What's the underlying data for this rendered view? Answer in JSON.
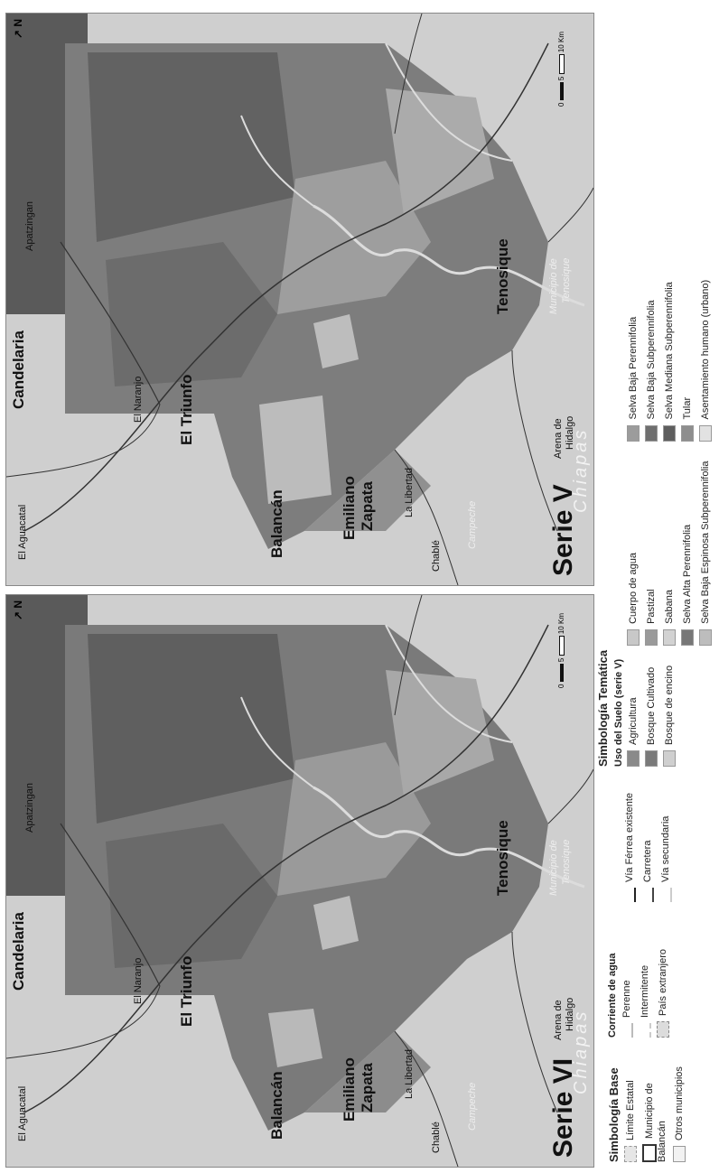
{
  "maps": [
    {
      "serie_label": "Serie VI",
      "places": {
        "candelaria": "Candelaria",
        "el_aguacatal": "El Aguacatal",
        "el_naranjo": "El Naranjo",
        "el_triunfo": "El Triunfo",
        "apatzingan": "Apatzingan",
        "balancan": "Balancán",
        "emiliano": "Emiliano",
        "zapata": "Zapata",
        "la_libertad": "La Libertad",
        "chable": "Chablé",
        "campeche": "Campeche",
        "tenosique": "Tenosique",
        "municipio_de": "Municipio de",
        "tenosique_mun": "Tenosique",
        "arena_de": "Arena de",
        "hidalgo": "Hidalgo",
        "chiapas": "Chiapas"
      }
    },
    {
      "serie_label": "Serie V",
      "places": {
        "candelaria": "Candelaria",
        "el_aguacatal": "El Aguacatal",
        "el_naranjo": "El Naranjo",
        "el_triunfo": "El Triunfo",
        "apatzingan": "Apatzingan",
        "balancan": "Balancán",
        "emiliano": "Emiliano",
        "zapata": "Zapata",
        "la_libertad": "La Libertad",
        "chable": "Chablé",
        "campeche": "Campeche",
        "tenosique": "Tenosique",
        "municipio_de": "Municipio de",
        "tenosique_mun": "Tenosique",
        "arena_de": "Arena de",
        "hidalgo": "Hidalgo",
        "chiapas": "Chiapas"
      }
    }
  ],
  "north_label": "N",
  "scale": {
    "ticks": [
      "0",
      "5",
      "10"
    ],
    "unit": "Km"
  },
  "legend": {
    "base": {
      "title": "Simbología Base",
      "items": [
        "Límite Estatal",
        "Municipio de Balancán",
        "Otros municipios"
      ]
    },
    "agua": {
      "title": "Corriente de agua",
      "items": [
        "Perenne",
        "Intermitente",
        "País extranjero"
      ]
    },
    "vias": {
      "items": [
        "Vía Férrea existente",
        "Carretera",
        "Vía secundaria"
      ]
    },
    "tematica": {
      "title": "Simbología Temática",
      "subtitle": "Uso del Suelo (serie V)",
      "col1": [
        {
          "label": "Agricultura",
          "color": "#8a8a8a"
        },
        {
          "label": "Bosque Cultivado",
          "color": "#7a7a7a"
        },
        {
          "label": "Bosque de encino",
          "color": "#cfcfcf"
        }
      ],
      "col2": [
        {
          "label": "Cuerpo de agua",
          "color": "#c8c8c8"
        },
        {
          "label": "Pastizal",
          "color": "#9a9a9a"
        },
        {
          "label": "Sabana",
          "color": "#d2d2d2"
        },
        {
          "label": "Selva Alta Perennifolia",
          "color": "#777777"
        },
        {
          "label": "Selva Baja Espinosa Subperennifolia",
          "color": "#bdbdbd"
        }
      ],
      "col3": [
        {
          "label": "Selva Baja Perennifolia",
          "color": "#9c9c9c"
        },
        {
          "label": "Selva Baja Subperennifolia",
          "color": "#6f6f6f"
        },
        {
          "label": "Selva Mediana Subperennifolia",
          "color": "#5e5e5e"
        },
        {
          "label": "Tular",
          "color": "#8e8e8e"
        },
        {
          "label": "Asentamiento humano (urbano)",
          "color": "#e2e2e2"
        }
      ]
    }
  }
}
